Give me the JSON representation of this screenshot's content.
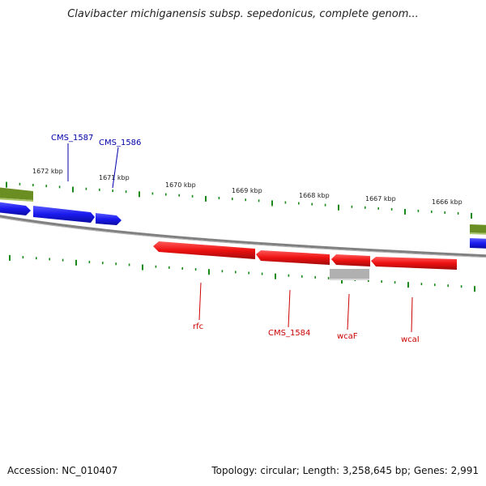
{
  "title": "Clavibacter michiganensis subsp. sepedonicus, complete genom...",
  "footer": {
    "accession": "Accession: NC_010407",
    "summary": "Topology: circular; Length: 3,258,645 bp; Genes: 2,991"
  },
  "colors": {
    "forward_gene": "#1a1aee",
    "reverse_gene": "#ee1111",
    "olive_feature": "#6b8e23",
    "grey_feature": "#b0b0b0",
    "backbone": "#808080",
    "ticks": "#1a8a1a",
    "forward_label": "#0000aa",
    "reverse_label": "#cc0000"
  },
  "kbp_labels": [
    "1672 kbp",
    "1671 kbp",
    "1670 kbp",
    "1669 kbp",
    "1668 kbp",
    "1667 kbp",
    "1666 kbp"
  ],
  "forward_genes": [
    {
      "label": "CMS_1587"
    },
    {
      "label": "CMS_1586"
    }
  ],
  "reverse_genes": [
    {
      "label": "rfc"
    },
    {
      "label": "CMS_1584"
    },
    {
      "label": "wcaF"
    },
    {
      "label": "wcaI"
    }
  ]
}
